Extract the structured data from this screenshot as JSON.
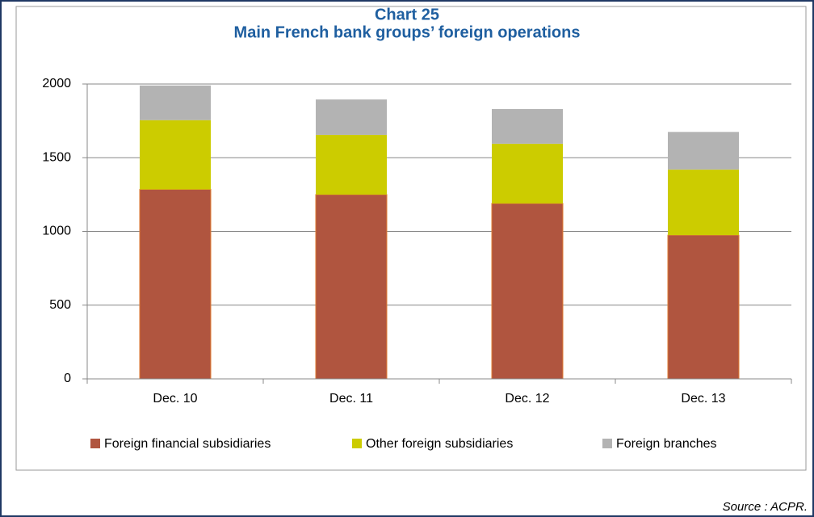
{
  "chart_data": {
    "type": "stacked_bar",
    "title": "Chart 25",
    "subtitle": "Main French bank groups’ foreign operations",
    "categories": [
      "Dec. 10",
      "Dec. 11",
      "Dec. 12",
      "Dec. 13"
    ],
    "series": [
      {
        "name": "Foreign financial subsidiaries",
        "color": "#b0553f",
        "values": [
          1285,
          1250,
          1190,
          975
        ]
      },
      {
        "name": "Other foreign subsidiaries",
        "color": "#cccc00",
        "values": [
          470,
          405,
          405,
          445
        ]
      },
      {
        "name": "Foreign branches",
        "color": "#b3b3b3",
        "values": [
          235,
          240,
          235,
          255
        ]
      }
    ],
    "ylim": [
      0,
      2000
    ],
    "yticks": [
      0,
      500,
      1000,
      1500,
      2000
    ],
    "grid": true,
    "legend": "bottom",
    "source": "Source : ACPR."
  }
}
